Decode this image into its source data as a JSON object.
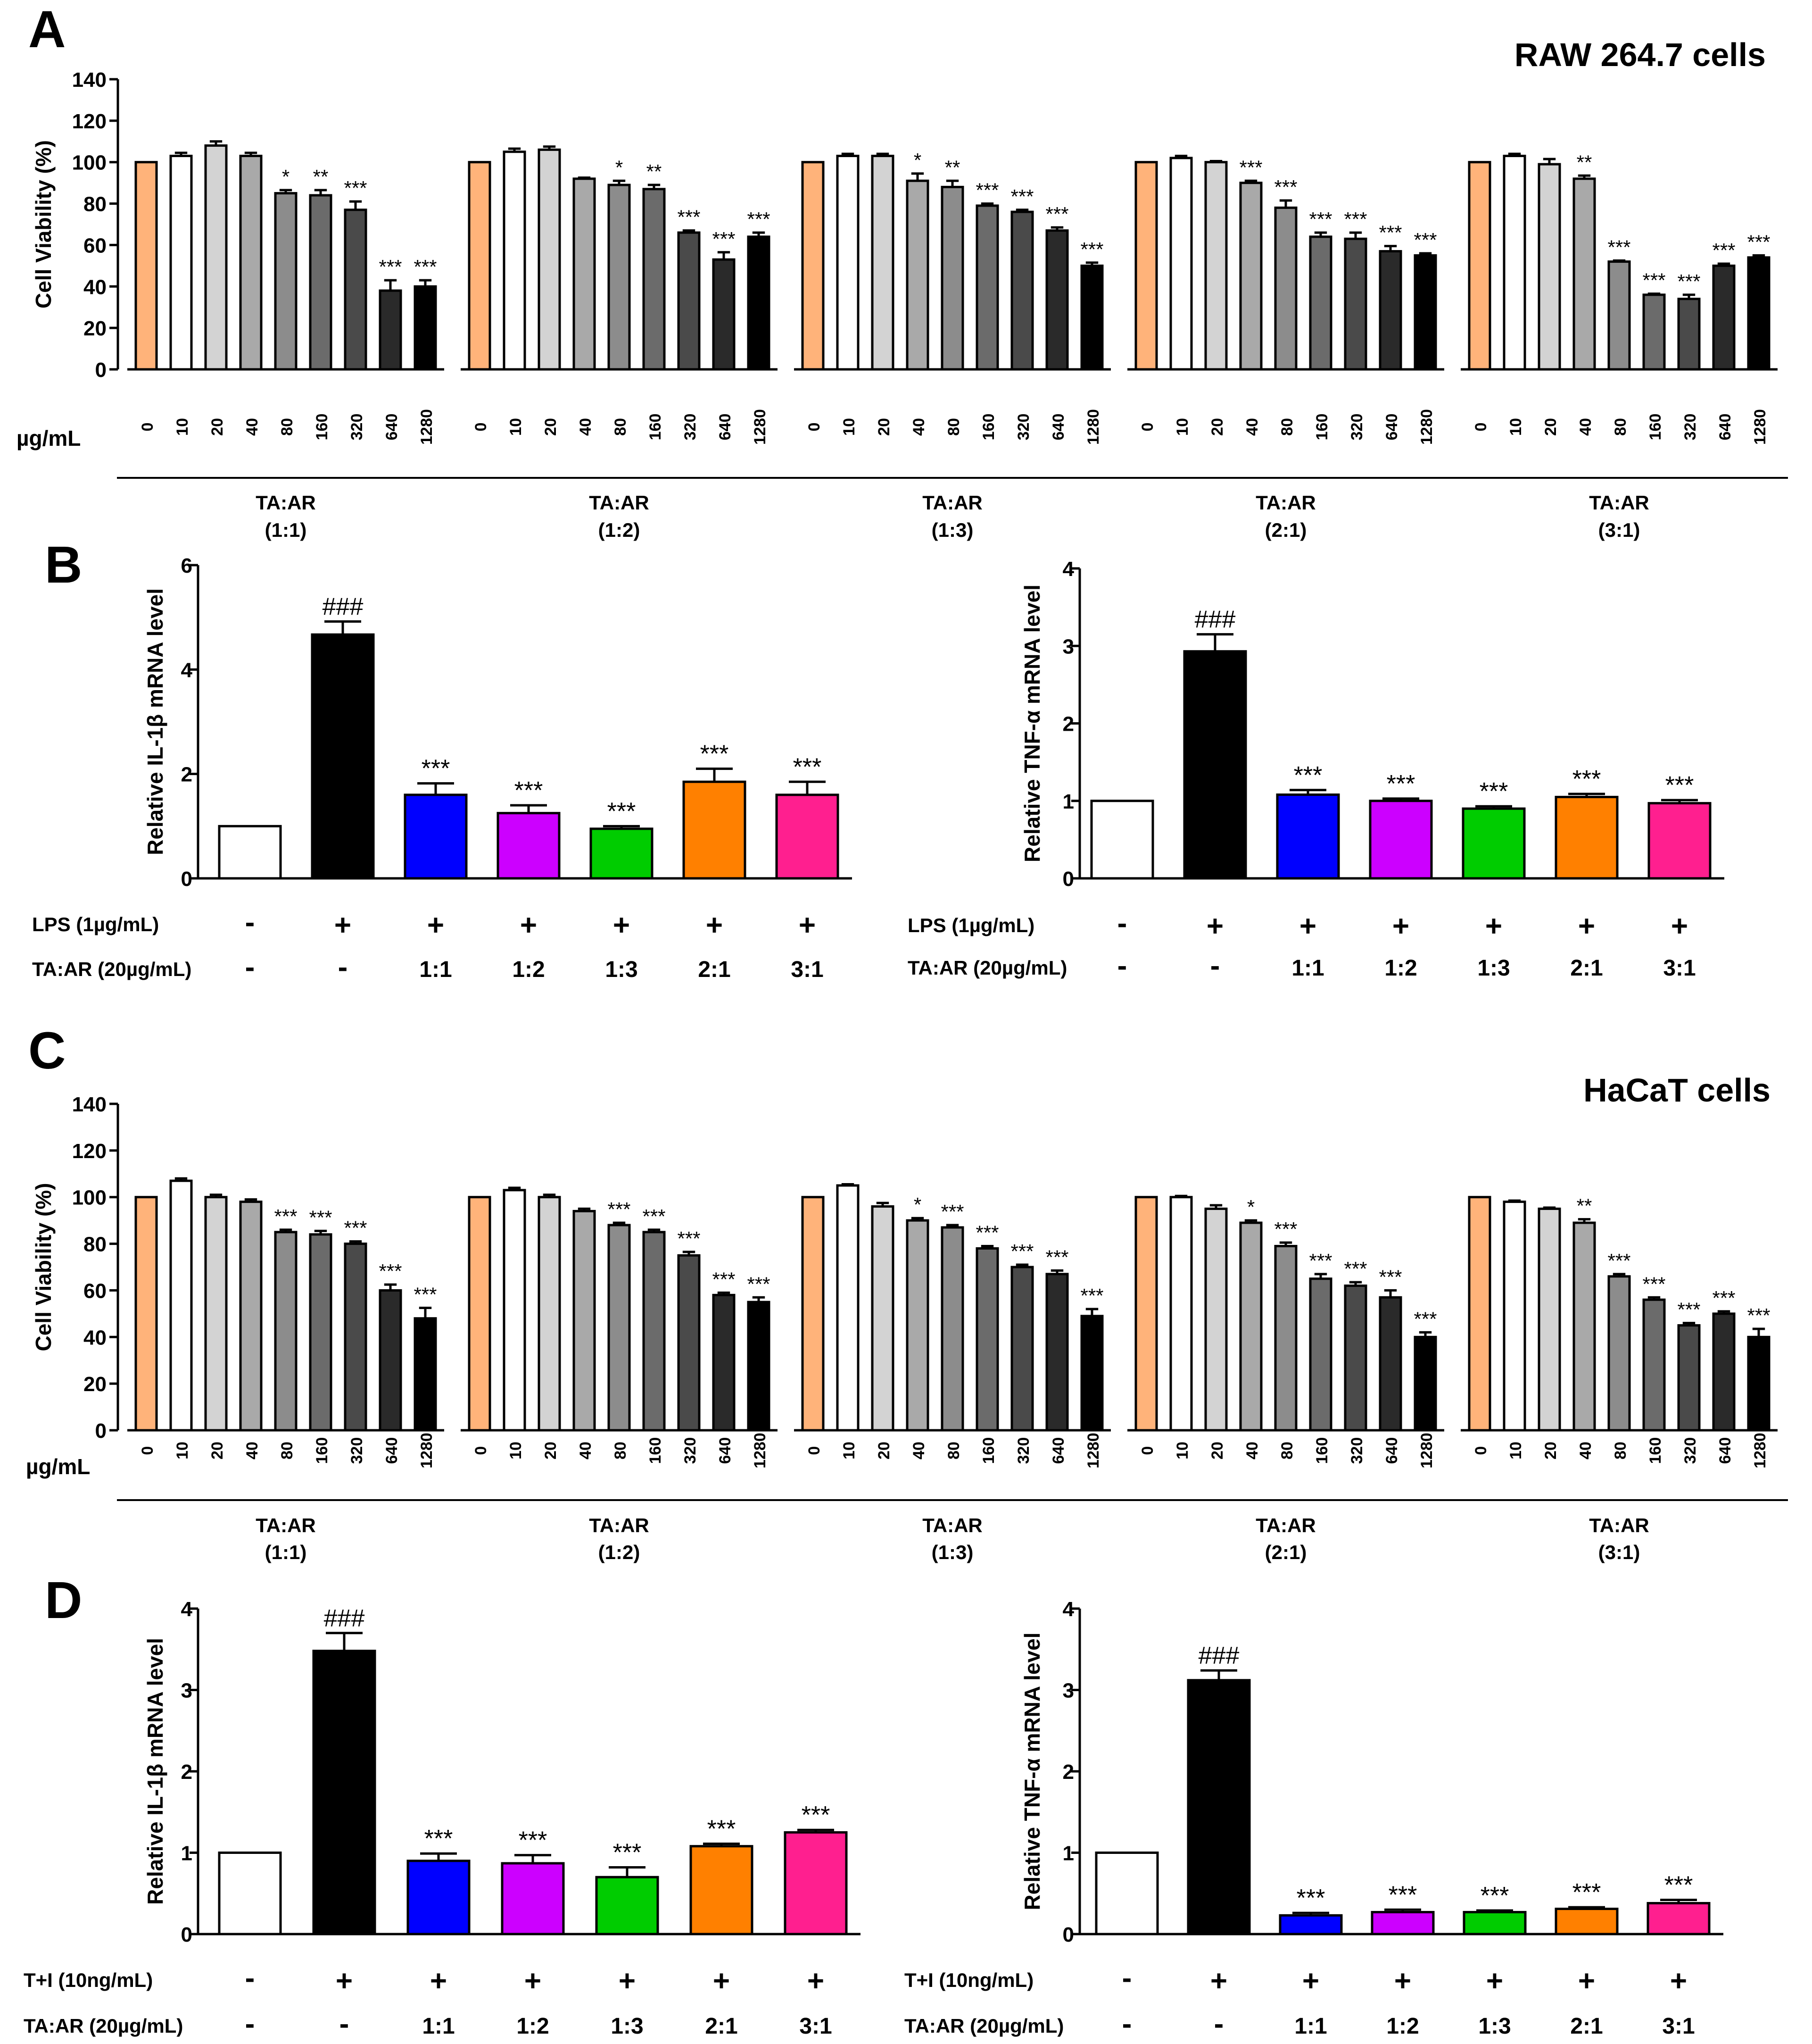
{
  "panels": [
    {
      "letter": "A",
      "title": "RAW 264.7 cells"
    },
    {
      "letter": "B",
      "title": ""
    },
    {
      "letter": "C",
      "title": "HaCaT cells"
    },
    {
      "letter": "D",
      "title": ""
    }
  ],
  "chart_data": [
    {
      "id": "A",
      "type": "bar",
      "title": "RAW 264.7 cells",
      "ylabel": "Cell Viability (%)",
      "xunit": "µg/mL",
      "ylim": [
        0,
        140
      ],
      "yticks": [
        0,
        20,
        40,
        60,
        80,
        100,
        120,
        140
      ],
      "categories": [
        "0",
        "10",
        "20",
        "40",
        "80",
        "160",
        "320",
        "640",
        "1280"
      ],
      "groups": [
        {
          "label": "TA:AR",
          "ratio": "(1:1)",
          "values": [
            100,
            103,
            108,
            103,
            85,
            84,
            77,
            38,
            40
          ],
          "errors": [
            0,
            1.5,
            2,
            1.5,
            1.5,
            2.5,
            4,
            5,
            3
          ],
          "sig": [
            "",
            "",
            "",
            "",
            "*",
            "**",
            "***",
            "***",
            "***"
          ]
        },
        {
          "label": "TA:AR",
          "ratio": "(1:2)",
          "values": [
            100,
            105,
            106,
            92,
            89,
            87,
            66,
            53,
            64
          ],
          "errors": [
            0,
            1.5,
            1.5,
            0.5,
            2,
            2,
            1,
            3.5,
            2
          ],
          "sig": [
            "",
            "",
            "",
            "",
            "*",
            "**",
            "***",
            "***",
            "***"
          ]
        },
        {
          "label": "TA:AR",
          "ratio": "(1:3)",
          "values": [
            100,
            103,
            103,
            91,
            88,
            79,
            76,
            67,
            50
          ],
          "errors": [
            0,
            1,
            1,
            3.5,
            3,
            1,
            1,
            1.5,
            1.5
          ],
          "sig": [
            "",
            "",
            "",
            "*",
            "**",
            "***",
            "***",
            "***",
            "***"
          ]
        },
        {
          "label": "TA:AR",
          "ratio": "(2:1)",
          "values": [
            100,
            102,
            100,
            90,
            78,
            64,
            63,
            57,
            55
          ],
          "errors": [
            0,
            1,
            0.5,
            1,
            3.5,
            2,
            3,
            2.5,
            1
          ],
          "sig": [
            "",
            "",
            "",
            "***",
            "***",
            "***",
            "***",
            "***",
            "***"
          ]
        },
        {
          "label": "TA:AR",
          "ratio": "(3:1)",
          "values": [
            100,
            103,
            99,
            92,
            52,
            36,
            34,
            50,
            54
          ],
          "errors": [
            0,
            1,
            2.5,
            1.5,
            0.5,
            0.5,
            2,
            1,
            1
          ],
          "sig": [
            "",
            "",
            "",
            "**",
            "***",
            "***",
            "***",
            "***",
            "***"
          ]
        }
      ],
      "colors": [
        "#FFB37A",
        "#FFFFFF",
        "#D3D3D3",
        "#A9A9A9",
        "#8C8C8C",
        "#6B6B6B",
        "#4A4A4A",
        "#2A2A2A",
        "#000000"
      ]
    },
    {
      "id": "B1",
      "type": "bar",
      "ylabel": "Relative IL-1β  mRNA level",
      "ylim": [
        0,
        6
      ],
      "yticks": [
        0,
        2,
        4,
        6
      ],
      "values": [
        1,
        4.67,
        1.6,
        1.25,
        0.95,
        1.85,
        1.6
      ],
      "errors": [
        0,
        0.25,
        0.22,
        0.15,
        0.05,
        0.25,
        0.25
      ],
      "sig": [
        "",
        "###",
        "***",
        "***",
        "***",
        "***",
        "***"
      ],
      "colors": [
        "#FFFFFF",
        "#000000",
        "#0000FF",
        "#CC00FF",
        "#00CC00",
        "#FF8000",
        "#FF1F8F"
      ],
      "treatments": [
        {
          "label": "LPS (1µg/mL)",
          "row": [
            "-",
            "+",
            "+",
            "+",
            "+",
            "+",
            "+"
          ]
        },
        {
          "label": "TA:AR (20µg/mL)",
          "row": [
            "-",
            "-",
            "1:1",
            "1:2",
            "1:3",
            "2:1",
            "3:1"
          ]
        }
      ]
    },
    {
      "id": "B2",
      "type": "bar",
      "ylabel": "Relative TNF-α  mRNA level",
      "ylim": [
        0,
        4
      ],
      "yticks": [
        0,
        1,
        2,
        3,
        4
      ],
      "values": [
        1,
        2.93,
        1.08,
        1.0,
        0.9,
        1.05,
        0.97
      ],
      "errors": [
        0,
        0.22,
        0.06,
        0.03,
        0.03,
        0.04,
        0.04
      ],
      "sig": [
        "",
        "###",
        "***",
        "***",
        "***",
        "***",
        "***"
      ],
      "colors": [
        "#FFFFFF",
        "#000000",
        "#0000FF",
        "#CC00FF",
        "#00CC00",
        "#FF8000",
        "#FF1F8F"
      ],
      "treatments": [
        {
          "label": "LPS (1µg/mL)",
          "row": [
            "-",
            "+",
            "+",
            "+",
            "+",
            "+",
            "+"
          ]
        },
        {
          "label": "TA:AR (20µg/mL)",
          "row": [
            "-",
            "-",
            "1:1",
            "1:2",
            "1:3",
            "2:1",
            "3:1"
          ]
        }
      ]
    },
    {
      "id": "C",
      "type": "bar",
      "title": "HaCaT cells",
      "ylabel": "Cell Viability (%)",
      "xunit": "µg/mL",
      "ylim": [
        0,
        140
      ],
      "yticks": [
        0,
        20,
        40,
        60,
        80,
        100,
        120,
        140
      ],
      "categories": [
        "0",
        "10",
        "20",
        "40",
        "80",
        "160",
        "320",
        "640",
        "1280"
      ],
      "groups": [
        {
          "label": "TA:AR",
          "ratio": "(1:1)",
          "values": [
            100,
            107,
            100,
            98,
            85,
            84,
            80,
            60,
            48
          ],
          "errors": [
            0,
            1,
            1,
            1,
            1,
            1.5,
            1,
            2.5,
            4.5
          ],
          "sig": [
            "",
            "",
            "",
            "",
            "***",
            "***",
            "***",
            "***",
            "***"
          ]
        },
        {
          "label": "TA:AR",
          "ratio": "(1:2)",
          "values": [
            100,
            103,
            100,
            94,
            88,
            85,
            75,
            58,
            55
          ],
          "errors": [
            0,
            1,
            1,
            1,
            1,
            1,
            1.5,
            1,
            2
          ],
          "sig": [
            "",
            "",
            "",
            "",
            "***",
            "***",
            "***",
            "***",
            "***"
          ]
        },
        {
          "label": "TA:AR",
          "ratio": "(1:3)",
          "values": [
            100,
            105,
            96,
            90,
            87,
            78,
            70,
            67,
            49
          ],
          "errors": [
            0,
            0.5,
            1.5,
            1,
            1,
            1,
            1,
            1.5,
            3
          ],
          "sig": [
            "",
            "",
            "",
            "*",
            "***",
            "***",
            "***",
            "***",
            "***"
          ]
        },
        {
          "label": "TA:AR",
          "ratio": "(2:1)",
          "values": [
            100,
            100,
            95,
            89,
            79,
            65,
            62,
            57,
            40
          ],
          "errors": [
            0,
            0.5,
            1.5,
            1,
            1.5,
            2,
            1.5,
            3,
            2
          ],
          "sig": [
            "",
            "",
            "",
            "*",
            "***",
            "***",
            "***",
            "***",
            "***"
          ]
        },
        {
          "label": "TA:AR",
          "ratio": "(3:1)",
          "values": [
            100,
            98,
            95,
            89,
            66,
            56,
            45,
            50,
            40
          ],
          "errors": [
            0,
            0.5,
            0.5,
            1.5,
            1,
            1,
            1,
            1,
            3.5
          ],
          "sig": [
            "",
            "",
            "",
            "**",
            "***",
            "***",
            "***",
            "***",
            "***"
          ]
        }
      ],
      "colors": [
        "#FFB37A",
        "#FFFFFF",
        "#D3D3D3",
        "#A9A9A9",
        "#8C8C8C",
        "#6B6B6B",
        "#4A4A4A",
        "#2A2A2A",
        "#000000"
      ]
    },
    {
      "id": "D1",
      "type": "bar",
      "ylabel": "Relative IL-1β  mRNA level",
      "ylim": [
        0,
        4
      ],
      "yticks": [
        0,
        1,
        2,
        3,
        4
      ],
      "values": [
        1,
        3.48,
        0.9,
        0.87,
        0.7,
        1.08,
        1.25
      ],
      "errors": [
        0,
        0.22,
        0.09,
        0.1,
        0.12,
        0.03,
        0.03
      ],
      "sig": [
        "",
        "###",
        "***",
        "***",
        "***",
        "***",
        "***"
      ],
      "colors": [
        "#FFFFFF",
        "#000000",
        "#0000FF",
        "#CC00FF",
        "#00CC00",
        "#FF8000",
        "#FF1F8F"
      ],
      "treatments": [
        {
          "label": "T+I (10ng/mL)",
          "row": [
            "-",
            "+",
            "+",
            "+",
            "+",
            "+",
            "+"
          ]
        },
        {
          "label": "TA:AR (20µg/mL)",
          "row": [
            "-",
            "-",
            "1:1",
            "1:2",
            "1:3",
            "2:1",
            "3:1"
          ]
        }
      ]
    },
    {
      "id": "D2",
      "type": "bar",
      "ylabel": "Relative TNF-α  mRNA level",
      "ylim": [
        0,
        4
      ],
      "yticks": [
        0,
        1,
        2,
        3,
        4
      ],
      "values": [
        1,
        3.12,
        0.23,
        0.27,
        0.27,
        0.31,
        0.38
      ],
      "errors": [
        0,
        0.12,
        0.03,
        0.03,
        0.02,
        0.02,
        0.04
      ],
      "sig": [
        "",
        "###",
        "***",
        "***",
        "***",
        "***",
        "***"
      ],
      "colors": [
        "#FFFFFF",
        "#000000",
        "#0000FF",
        "#CC00FF",
        "#00CC00",
        "#FF8000",
        "#FF1F8F"
      ],
      "treatments": [
        {
          "label": "T+I (10ng/mL)",
          "row": [
            "-",
            "+",
            "+",
            "+",
            "+",
            "+",
            "+"
          ]
        },
        {
          "label": "TA:AR (20µg/mL)",
          "row": [
            "-",
            "-",
            "1:1",
            "1:2",
            "1:3",
            "2:1",
            "3:1"
          ]
        }
      ]
    }
  ]
}
